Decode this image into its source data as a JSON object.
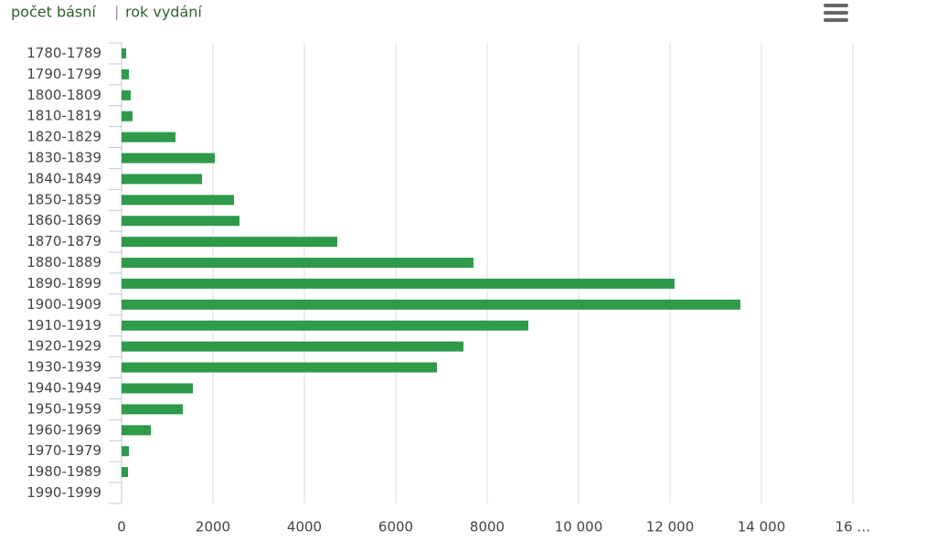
{
  "chart_data": {
    "type": "bar",
    "orientation": "horizontal",
    "title": [
      "počet básní",
      "|",
      "rok vydání"
    ],
    "categories": [
      "1780-1789",
      "1790-1799",
      "1800-1809",
      "1810-1819",
      "1820-1829",
      "1830-1839",
      "1840-1849",
      "1850-1859",
      "1860-1869",
      "1870-1879",
      "1880-1889",
      "1890-1899",
      "1900-1909",
      "1910-1919",
      "1920-1929",
      "1930-1939",
      "1940-1949",
      "1950-1959",
      "1960-1969",
      "1970-1979",
      "1980-1989",
      "1990-1999"
    ],
    "values": [
      100,
      160,
      200,
      240,
      1180,
      2040,
      1760,
      2460,
      2580,
      4720,
      7700,
      12100,
      13540,
      8900,
      7480,
      6900,
      1560,
      1340,
      640,
      160,
      140,
      0
    ],
    "color": "#2e9a4a",
    "xlim": [
      0,
      16000
    ],
    "xticks": [
      0,
      2000,
      4000,
      6000,
      8000,
      {
        "value": 10000,
        "label": "10 000"
      },
      {
        "value": 12000,
        "label": "12 000"
      },
      {
        "value": 14000,
        "label": "14 000"
      },
      {
        "value": 16000,
        "label": "16 …"
      }
    ],
    "grid": true
  }
}
